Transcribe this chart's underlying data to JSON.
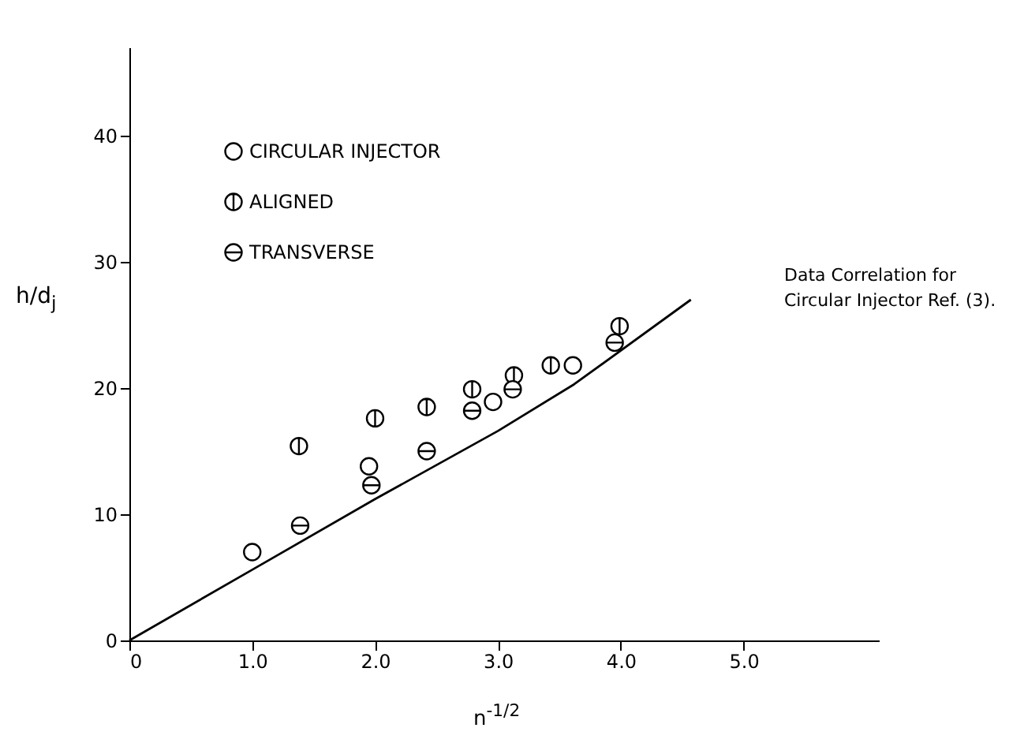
{
  "chart_data": {
    "type": "scatter",
    "xlabel": "n$^{-1/2}$",
    "ylabel": "h/d$_{j}$",
    "xlim": [
      0,
      6.1
    ],
    "ylim": [
      0,
      47
    ],
    "xticks": [
      0,
      {
        "value": 1,
        "label": "1.0"
      },
      {
        "value": 2,
        "label": "2.0"
      },
      {
        "value": 3,
        "label": "3.0"
      },
      {
        "value": 4,
        "label": "4.0"
      },
      {
        "value": 5,
        "label": "5.0"
      }
    ],
    "yticks": [
      0,
      10,
      20,
      30,
      40
    ],
    "grid": false,
    "legend": "top left",
    "annotations": [
      "Data Correlation for\nCircular Injector Ref. (3)."
    ],
    "series": [
      {
        "name": "CIRCULAR INJECTOR",
        "color": "#000000",
        "x": [
          1.0,
          1.95,
          2.96,
          3.61
        ],
        "values": [
          7.0,
          13.8,
          18.9,
          21.8
        ]
      },
      {
        "name": "ALIGNED",
        "color": "#000000",
        "x": [
          1.38,
          2.0,
          2.42,
          2.79,
          3.13,
          3.43,
          3.99
        ],
        "values": [
          15.4,
          17.6,
          18.5,
          19.9,
          21.0,
          21.8,
          24.9
        ]
      },
      {
        "name": "TRANSVERSE",
        "color": "#000000",
        "x": [
          1.39,
          1.97,
          2.42,
          2.79,
          3.12,
          3.95
        ],
        "values": [
          9.1,
          12.3,
          15.0,
          18.2,
          19.9,
          23.6
        ]
      },
      {
        "type": "line",
        "color": "#000000",
        "x": [
          0,
          1,
          2,
          3,
          3.62,
          4.57
        ],
        "values": [
          0,
          5.6,
          11.2,
          16.6,
          20.3,
          27.0
        ]
      }
    ]
  }
}
